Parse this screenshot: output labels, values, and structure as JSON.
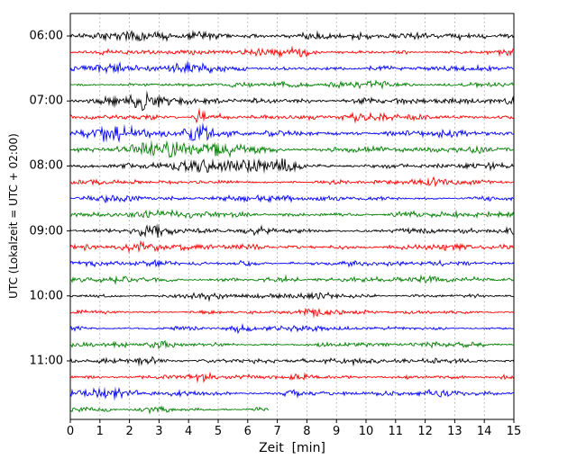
{
  "chart_data": {
    "type": "line",
    "subtype": "helicorder-seismogram",
    "description": "Drum-plot style seismogram: 24 consecutive 15-minute noise traces stacked vertically, colors cycling black/red/blue/green; vertical dotted minute gridlines; last trace ends early at ~6.7 min.",
    "title": "",
    "xlabel": "Zeit  [min]",
    "ylabel": "UTC (Lokalzeit = UTC + 02:00)",
    "xlim": [
      0,
      15
    ],
    "x_ticks": [
      0,
      1,
      2,
      3,
      4,
      5,
      6,
      7,
      8,
      9,
      10,
      11,
      12,
      13,
      14,
      15
    ],
    "y_tick_labels": [
      "06:00",
      "07:00",
      "08:00",
      "09:00",
      "10:00",
      "11:00"
    ],
    "y_hour_rows": [
      0,
      4,
      8,
      12,
      16,
      20
    ],
    "grid": "vertical-dotted",
    "grid_color": "#9e9e9e",
    "axis_color": "#000000",
    "background": "#ffffff",
    "trace_color_cycle": [
      "#000000",
      "#ff0000",
      "#0000ff",
      "#008000"
    ],
    "minutes_per_row": 15,
    "noise_seed": 20240607,
    "rows": [
      {
        "time": "06:00",
        "color": "#000000",
        "end_min": 15,
        "base": 1.1,
        "bursts": [
          {
            "m": 2.6,
            "w": 0.5,
            "g": 1.1
          },
          {
            "m": 4.1,
            "w": 0.4,
            "g": 1.0
          },
          {
            "m": 7.9,
            "w": 0.5,
            "g": 0.7
          }
        ]
      },
      {
        "time": "06:15",
        "color": "#ff0000",
        "end_min": 15,
        "base": 1.0,
        "bursts": [
          {
            "m": 1.4,
            "w": 0.5,
            "g": 0.7
          },
          {
            "m": 7.5,
            "w": 0.6,
            "g": 0.6
          }
        ]
      },
      {
        "time": "06:30",
        "color": "#0000ff",
        "end_min": 15,
        "base": 1.0,
        "bursts": [
          {
            "m": 1.5,
            "w": 0.8,
            "g": 0.9
          },
          {
            "m": 4.0,
            "w": 0.5,
            "g": 0.8
          },
          {
            "m": 10.6,
            "w": 0.4,
            "g": 0.7
          }
        ]
      },
      {
        "time": "06:45",
        "color": "#008000",
        "end_min": 15,
        "base": 0.9,
        "bursts": [
          {
            "m": 9.9,
            "w": 0.6,
            "g": 0.9
          },
          {
            "m": 13.6,
            "w": 0.4,
            "g": 0.6
          }
        ]
      },
      {
        "time": "07:00",
        "color": "#000000",
        "end_min": 15,
        "base": 1.1,
        "bursts": [
          {
            "m": 1.9,
            "w": 0.6,
            "g": 1.3
          },
          {
            "m": 2.8,
            "w": 0.4,
            "g": 1.1
          },
          {
            "m": 10.0,
            "w": 0.5,
            "g": 0.8
          }
        ]
      },
      {
        "time": "07:15",
        "color": "#ff0000",
        "end_min": 15,
        "base": 1.0,
        "bursts": [
          {
            "m": 4.4,
            "w": 0.15,
            "g": 2.0
          },
          {
            "m": 5.1,
            "w": 0.3,
            "g": 0.9
          },
          {
            "m": 9.8,
            "w": 0.5,
            "g": 0.6
          }
        ]
      },
      {
        "time": "07:30",
        "color": "#0000ff",
        "end_min": 15,
        "base": 1.0,
        "bursts": [
          {
            "m": 1.4,
            "w": 0.7,
            "g": 1.7
          },
          {
            "m": 4.6,
            "w": 0.6,
            "g": 1.5
          },
          {
            "m": 7.0,
            "w": 0.4,
            "g": 0.9
          }
        ]
      },
      {
        "time": "07:45",
        "color": "#008000",
        "end_min": 15,
        "base": 1.0,
        "bursts": [
          {
            "m": 3.0,
            "w": 0.8,
            "g": 1.5
          },
          {
            "m": 5.3,
            "w": 0.9,
            "g": 1.2
          },
          {
            "m": 9.3,
            "w": 0.5,
            "g": 0.7
          }
        ]
      },
      {
        "time": "08:00",
        "color": "#000000",
        "end_min": 15,
        "base": 1.1,
        "bursts": [
          {
            "m": 4.5,
            "w": 0.6,
            "g": 1.4
          },
          {
            "m": 6.3,
            "w": 0.7,
            "g": 1.3
          },
          {
            "m": 7.5,
            "w": 0.5,
            "g": 1.1
          }
        ]
      },
      {
        "time": "08:15",
        "color": "#ff0000",
        "end_min": 15,
        "base": 0.85,
        "bursts": [
          {
            "m": 12.1,
            "w": 0.4,
            "g": 0.5
          }
        ]
      },
      {
        "time": "08:30",
        "color": "#0000ff",
        "end_min": 15,
        "base": 0.95,
        "bursts": [
          {
            "m": 1.3,
            "w": 0.6,
            "g": 1.0
          },
          {
            "m": 6.9,
            "w": 0.4,
            "g": 0.5
          }
        ]
      },
      {
        "time": "08:45",
        "color": "#008000",
        "end_min": 15,
        "base": 0.95,
        "bursts": [
          {
            "m": 3.1,
            "w": 0.4,
            "g": 0.9
          },
          {
            "m": 11.5,
            "w": 0.3,
            "g": 1.0
          }
        ]
      },
      {
        "time": "09:00",
        "color": "#000000",
        "end_min": 15,
        "base": 1.0,
        "bursts": [
          {
            "m": 2.7,
            "w": 0.4,
            "g": 1.0
          },
          {
            "m": 6.3,
            "w": 0.4,
            "g": 0.9
          }
        ]
      },
      {
        "time": "09:15",
        "color": "#ff0000",
        "end_min": 15,
        "base": 1.0,
        "bursts": [
          {
            "m": 2.5,
            "w": 0.5,
            "g": 0.8
          },
          {
            "m": 6.2,
            "w": 0.4,
            "g": 0.8
          }
        ]
      },
      {
        "time": "09:30",
        "color": "#0000ff",
        "end_min": 15,
        "base": 0.85,
        "bursts": [
          {
            "m": 3.0,
            "w": 0.3,
            "g": 0.8
          },
          {
            "m": 6.0,
            "w": 0.3,
            "g": 0.7
          }
        ]
      },
      {
        "time": "09:45",
        "color": "#008000",
        "end_min": 15,
        "base": 0.95,
        "bursts": [
          {
            "m": 7.4,
            "w": 0.3,
            "g": 0.8
          },
          {
            "m": 12.3,
            "w": 0.3,
            "g": 0.9
          }
        ]
      },
      {
        "time": "10:00",
        "color": "#000000",
        "end_min": 15,
        "base": 0.95,
        "bursts": [
          {
            "m": 4.2,
            "w": 0.4,
            "g": 0.6
          }
        ]
      },
      {
        "time": "10:15",
        "color": "#ff0000",
        "end_min": 15,
        "base": 0.8,
        "bursts": [
          {
            "m": 8.4,
            "w": 0.4,
            "g": 0.4
          }
        ]
      },
      {
        "time": "10:30",
        "color": "#0000ff",
        "end_min": 15,
        "base": 0.85,
        "bursts": [
          {
            "m": 5.8,
            "w": 0.25,
            "g": 0.9
          }
        ]
      },
      {
        "time": "10:45",
        "color": "#008000",
        "end_min": 15,
        "base": 0.85,
        "bursts": [
          {
            "m": 3.0,
            "w": 0.3,
            "g": 0.8
          }
        ]
      },
      {
        "time": "11:00",
        "color": "#000000",
        "end_min": 15,
        "base": 1.0,
        "bursts": [
          {
            "m": 2.6,
            "w": 0.4,
            "g": 0.9
          },
          {
            "m": 12.4,
            "w": 0.4,
            "g": 0.6
          }
        ]
      },
      {
        "time": "11:15",
        "color": "#ff0000",
        "end_min": 15,
        "base": 0.9,
        "bursts": [
          {
            "m": 4.5,
            "w": 0.2,
            "g": 1.1
          }
        ]
      },
      {
        "time": "11:30",
        "color": "#0000ff",
        "end_min": 15,
        "base": 0.95,
        "bursts": [
          {
            "m": 1.5,
            "w": 0.5,
            "g": 0.9
          },
          {
            "m": 7.6,
            "w": 0.3,
            "g": 0.7
          }
        ]
      },
      {
        "time": "11:45",
        "color": "#008000",
        "end_min": 6.7,
        "base": 0.85,
        "bursts": [
          {
            "m": 2.9,
            "w": 0.3,
            "g": 0.7
          },
          {
            "m": 6.5,
            "w": 0.15,
            "g": 0.7
          }
        ]
      }
    ]
  }
}
